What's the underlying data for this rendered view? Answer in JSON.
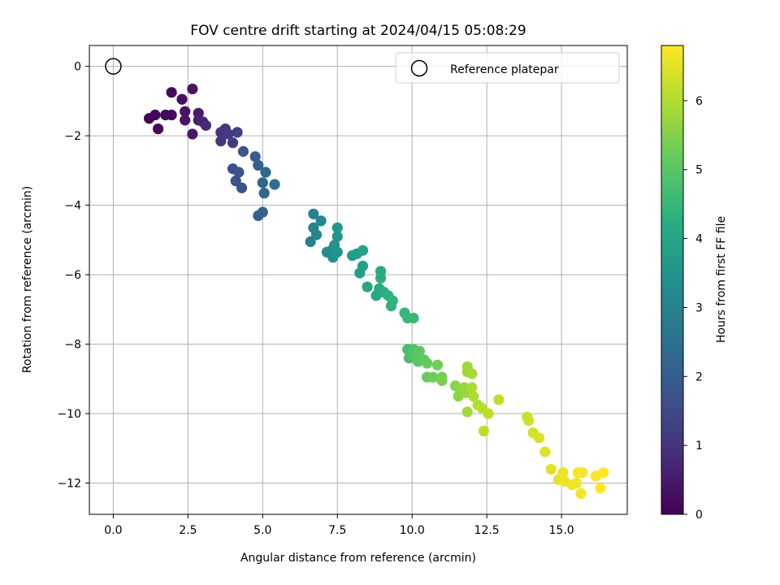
{
  "chart_data": {
    "type": "scatter",
    "title": "FOV centre drift starting at 2024/04/15 05:08:29",
    "xlabel": "Angular distance from reference (arcmin)",
    "ylabel": "Rotation from reference (arcmin)",
    "colorbar_label": "Hours from first FF file",
    "xlim": [
      -0.8,
      17.2
    ],
    "ylim": [
      -12.9,
      0.6
    ],
    "xticks": [
      0.0,
      2.5,
      5.0,
      7.5,
      10.0,
      12.5,
      15.0
    ],
    "xtick_labels": [
      "0.0",
      "2.5",
      "5.0",
      "7.5",
      "10.0",
      "12.5",
      "15.0"
    ],
    "yticks": [
      0,
      -2,
      -4,
      -6,
      -8,
      -10,
      -12
    ],
    "ytick_labels": [
      "0",
      "−2",
      "−4",
      "−6",
      "−8",
      "−10",
      "−12"
    ],
    "colorbar_range": [
      0,
      6.8
    ],
    "colorbar_ticks": [
      0,
      1,
      2,
      3,
      4,
      5,
      6
    ],
    "colorbar_tick_labels": [
      "0",
      "1",
      "2",
      "3",
      "4",
      "5",
      "6"
    ],
    "colormap": "viridis",
    "grid": true,
    "legend": {
      "position": "top-right",
      "label": "Reference platepar"
    },
    "reference_point": {
      "x": 0,
      "y": 0
    },
    "series": [
      {
        "points": [
          [
            1.2,
            -1.5,
            0.05
          ],
          [
            1.4,
            -1.4,
            0.1
          ],
          [
            1.5,
            -1.8,
            0.12
          ],
          [
            1.75,
            -1.4,
            0.15
          ],
          [
            1.95,
            -1.4,
            0.2
          ],
          [
            1.95,
            -0.75,
            0.22
          ],
          [
            2.3,
            -0.95,
            0.3
          ],
          [
            2.4,
            -1.3,
            0.35
          ],
          [
            2.4,
            -1.55,
            0.38
          ],
          [
            2.65,
            -0.65,
            0.4
          ],
          [
            2.65,
            -1.95,
            0.45
          ],
          [
            2.85,
            -1.35,
            0.55
          ],
          [
            2.85,
            -1.55,
            0.6
          ],
          [
            3.0,
            -1.6,
            0.7
          ],
          [
            3.1,
            -1.7,
            0.8
          ],
          [
            3.6,
            -1.9,
            1.0
          ],
          [
            3.6,
            -2.15,
            1.05
          ],
          [
            3.75,
            -1.8,
            1.1
          ],
          [
            3.85,
            -1.95,
            1.15
          ],
          [
            4.0,
            -2.2,
            1.2
          ],
          [
            4.15,
            -1.9,
            1.3
          ],
          [
            4.0,
            -2.95,
            1.6
          ],
          [
            4.1,
            -3.3,
            1.65
          ],
          [
            4.2,
            -3.05,
            1.7
          ],
          [
            4.3,
            -3.5,
            1.75
          ],
          [
            4.35,
            -2.45,
            1.8
          ],
          [
            4.75,
            -2.6,
            2.0
          ],
          [
            4.85,
            -2.85,
            2.05
          ],
          [
            4.85,
            -4.3,
            2.1
          ],
          [
            5.0,
            -4.2,
            2.15
          ],
          [
            5.0,
            -3.35,
            2.2
          ],
          [
            5.05,
            -3.65,
            2.25
          ],
          [
            5.1,
            -3.05,
            2.3
          ],
          [
            5.4,
            -3.4,
            2.4
          ],
          [
            6.6,
            -5.05,
            3.0
          ],
          [
            6.7,
            -4.25,
            3.05
          ],
          [
            6.7,
            -4.65,
            3.1
          ],
          [
            6.8,
            -4.85,
            3.15
          ],
          [
            6.95,
            -4.45,
            3.2
          ],
          [
            7.15,
            -5.35,
            3.3
          ],
          [
            7.3,
            -5.3,
            3.35
          ],
          [
            7.35,
            -5.5,
            3.4
          ],
          [
            7.4,
            -5.15,
            3.45
          ],
          [
            7.5,
            -4.9,
            3.5
          ],
          [
            7.5,
            -4.65,
            3.55
          ],
          [
            7.5,
            -5.35,
            3.6
          ],
          [
            8.0,
            -5.45,
            3.7
          ],
          [
            8.15,
            -5.4,
            3.75
          ],
          [
            8.25,
            -5.95,
            3.8
          ],
          [
            8.35,
            -5.75,
            3.85
          ],
          [
            8.35,
            -5.3,
            3.9
          ],
          [
            8.5,
            -6.35,
            4.0
          ],
          [
            8.8,
            -6.6,
            4.05
          ],
          [
            8.9,
            -6.4,
            4.1
          ],
          [
            8.95,
            -5.9,
            4.15
          ],
          [
            8.95,
            -6.1,
            4.2
          ],
          [
            9.05,
            -6.5,
            4.25
          ],
          [
            9.2,
            -6.6,
            4.3
          ],
          [
            9.3,
            -6.9,
            4.35
          ],
          [
            9.35,
            -6.75,
            4.4
          ],
          [
            9.75,
            -7.1,
            4.5
          ],
          [
            9.85,
            -7.25,
            4.55
          ],
          [
            10.05,
            -7.25,
            4.6
          ],
          [
            9.85,
            -8.15,
            4.75
          ],
          [
            9.9,
            -8.4,
            4.8
          ],
          [
            9.95,
            -8.3,
            4.85
          ],
          [
            10.05,
            -8.15,
            4.9
          ],
          [
            10.1,
            -8.3,
            4.95
          ],
          [
            10.2,
            -8.5,
            5.0
          ],
          [
            10.25,
            -8.2,
            5.05
          ],
          [
            10.4,
            -8.45,
            5.1
          ],
          [
            10.5,
            -8.55,
            5.15
          ],
          [
            10.5,
            -8.95,
            5.2
          ],
          [
            10.7,
            -8.95,
            5.25
          ],
          [
            10.85,
            -8.6,
            5.3
          ],
          [
            11.0,
            -8.95,
            5.35
          ],
          [
            11.0,
            -9.05,
            5.4
          ],
          [
            11.45,
            -9.2,
            5.55
          ],
          [
            11.55,
            -9.5,
            5.6
          ],
          [
            11.6,
            -9.3,
            5.65
          ],
          [
            11.75,
            -9.25,
            5.7
          ],
          [
            11.8,
            -9.4,
            5.75
          ],
          [
            11.85,
            -8.65,
            5.8
          ],
          [
            11.85,
            -8.8,
            5.82
          ],
          [
            11.85,
            -9.95,
            5.85
          ],
          [
            12.0,
            -8.85,
            5.9
          ],
          [
            12.0,
            -9.25,
            5.92
          ],
          [
            12.05,
            -9.5,
            5.95
          ],
          [
            12.2,
            -9.75,
            6.0
          ],
          [
            12.35,
            -9.85,
            6.05
          ],
          [
            12.4,
            -10.5,
            6.1
          ],
          [
            12.55,
            -10.0,
            6.12
          ],
          [
            12.9,
            -9.6,
            6.15
          ],
          [
            13.85,
            -10.1,
            6.25
          ],
          [
            13.9,
            -10.2,
            6.3
          ],
          [
            14.05,
            -10.55,
            6.35
          ],
          [
            14.25,
            -10.7,
            6.4
          ],
          [
            14.45,
            -11.1,
            6.45
          ],
          [
            14.65,
            -11.6,
            6.5
          ],
          [
            14.9,
            -11.9,
            6.55
          ],
          [
            15.05,
            -11.7,
            6.58
          ],
          [
            15.1,
            -11.95,
            6.6
          ],
          [
            15.35,
            -12.05,
            6.62
          ],
          [
            15.5,
            -12.0,
            6.65
          ],
          [
            15.55,
            -11.7,
            6.68
          ],
          [
            15.65,
            -12.3,
            6.7
          ],
          [
            15.7,
            -11.7,
            6.72
          ],
          [
            16.15,
            -11.8,
            6.75
          ],
          [
            16.3,
            -12.15,
            6.78
          ],
          [
            16.4,
            -11.7,
            6.8
          ]
        ]
      }
    ]
  }
}
